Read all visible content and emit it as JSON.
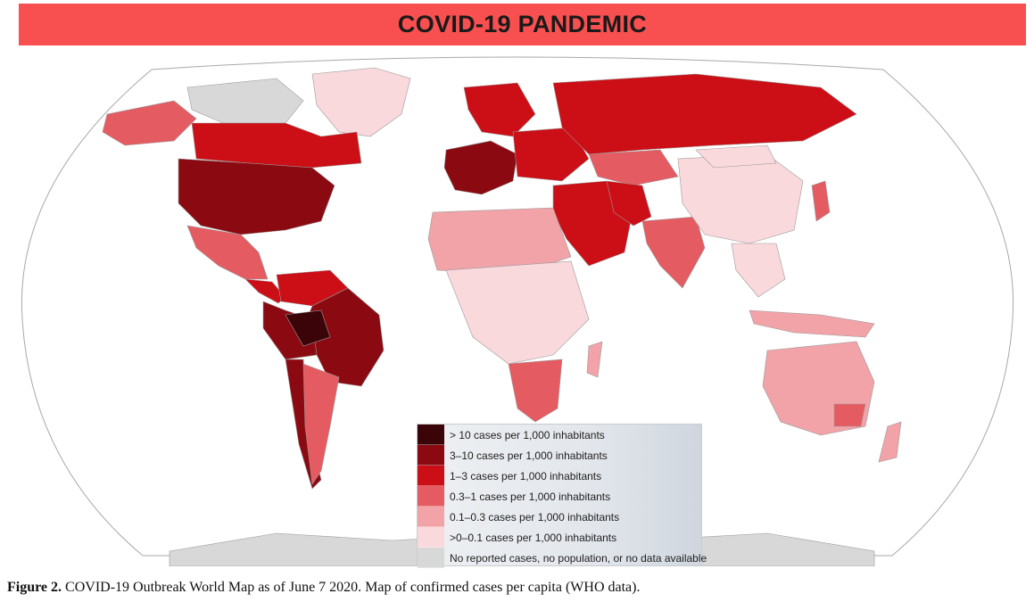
{
  "title": "COVID-19 PANDEMIC",
  "caption": {
    "label": "Figure  2.",
    "text": "COVID-19  Outbreak World Map as of June 7 2020. Map of confirmed cases per capita (WHO data)."
  },
  "colors": {
    "title_bar": "#f85050",
    "ocean": "#ffffff",
    "outline": "#9a9a9a",
    "gt10": "#3a0408",
    "c3_10": "#8b0a12",
    "c1_3": "#cc0f16",
    "c03_1": "#e45c62",
    "c01_03": "#f1a3a8",
    "c0_01": "#fad9dc",
    "none": "#d8d8d8"
  },
  "legend": {
    "items": [
      {
        "label": "> 10 cases per 1,000 inhabitants",
        "color": "#3a0408"
      },
      {
        "label": "3–10 cases per 1,000 inhabitants",
        "color": "#8b0a12"
      },
      {
        "label": "1–3 cases per 1,000 inhabitants",
        "color": "#cc0f16"
      },
      {
        "label": "0.3–1 cases per 1,000 inhabitants",
        "color": "#e45c62"
      },
      {
        "label": "0.1–0.3 cases per 1,000 inhabitants",
        "color": "#f1a3a8"
      },
      {
        "label": ">0–0.1 cases per 1,000 inhabitants",
        "color": "#fad9dc"
      },
      {
        "label": "No reported cases, no population, or no data available",
        "color": "#d8d8d8"
      }
    ]
  }
}
